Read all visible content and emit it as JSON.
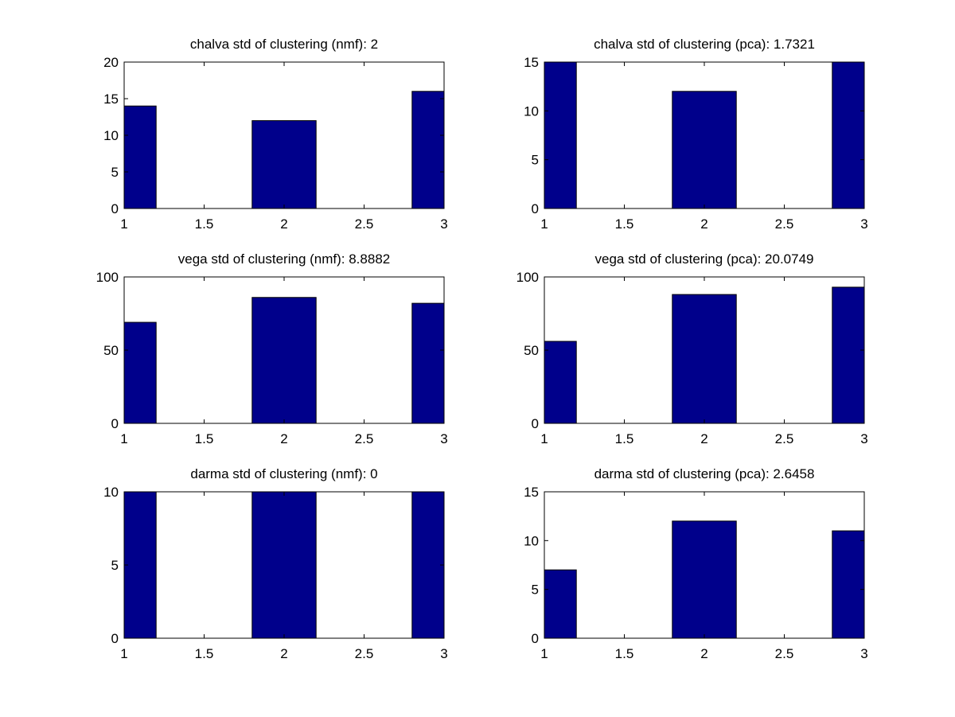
{
  "figure": {
    "background": "#ffffff",
    "bar_color": "#00008b",
    "axis_color": "#000000"
  },
  "chart_data": [
    {
      "type": "bar",
      "title": "chalva std of clustering (nmf): 2",
      "x": [
        1,
        2,
        3
      ],
      "values": [
        14,
        12,
        16
      ],
      "xlim": [
        1,
        3
      ],
      "ylim": [
        0,
        20
      ],
      "xticks": [
        "1",
        "1.5",
        "2",
        "2.5",
        "3"
      ],
      "yticks": [
        "0",
        "5",
        "10",
        "15",
        "20"
      ],
      "grid": false
    },
    {
      "type": "bar",
      "title": "chalva std of clustering (pca): 1.7321",
      "x": [
        1,
        2,
        3
      ],
      "values": [
        15,
        12,
        15
      ],
      "xlim": [
        1,
        3
      ],
      "ylim": [
        0,
        15
      ],
      "xticks": [
        "1",
        "1.5",
        "2",
        "2.5",
        "3"
      ],
      "yticks": [
        "0",
        "5",
        "10",
        "15"
      ],
      "grid": false
    },
    {
      "type": "bar",
      "title": "vega std of clustering (nmf): 8.8882",
      "x": [
        1,
        2,
        3
      ],
      "values": [
        69,
        86,
        82
      ],
      "xlim": [
        1,
        3
      ],
      "ylim": [
        0,
        100
      ],
      "xticks": [
        "1",
        "1.5",
        "2",
        "2.5",
        "3"
      ],
      "yticks": [
        "0",
        "50",
        "100"
      ],
      "grid": false
    },
    {
      "type": "bar",
      "title": "vega std of clustering (pca): 20.0749",
      "x": [
        1,
        2,
        3
      ],
      "values": [
        56,
        88,
        93
      ],
      "xlim": [
        1,
        3
      ],
      "ylim": [
        0,
        100
      ],
      "xticks": [
        "1",
        "1.5",
        "2",
        "2.5",
        "3"
      ],
      "yticks": [
        "0",
        "50",
        "100"
      ],
      "grid": false
    },
    {
      "type": "bar",
      "title": "darma std of clustering (nmf): 0",
      "x": [
        1,
        2,
        3
      ],
      "values": [
        10,
        10,
        10
      ],
      "xlim": [
        1,
        3
      ],
      "ylim": [
        0,
        10
      ],
      "xticks": [
        "1",
        "1.5",
        "2",
        "2.5",
        "3"
      ],
      "yticks": [
        "0",
        "5",
        "10"
      ],
      "grid": false
    },
    {
      "type": "bar",
      "title": "darma std of clustering (pca): 2.6458",
      "x": [
        1,
        2,
        3
      ],
      "values": [
        7,
        12,
        11
      ],
      "xlim": [
        1,
        3
      ],
      "ylim": [
        0,
        15
      ],
      "xticks": [
        "1",
        "1.5",
        "2",
        "2.5",
        "3"
      ],
      "yticks": [
        "0",
        "5",
        "10",
        "15"
      ],
      "grid": false
    }
  ]
}
